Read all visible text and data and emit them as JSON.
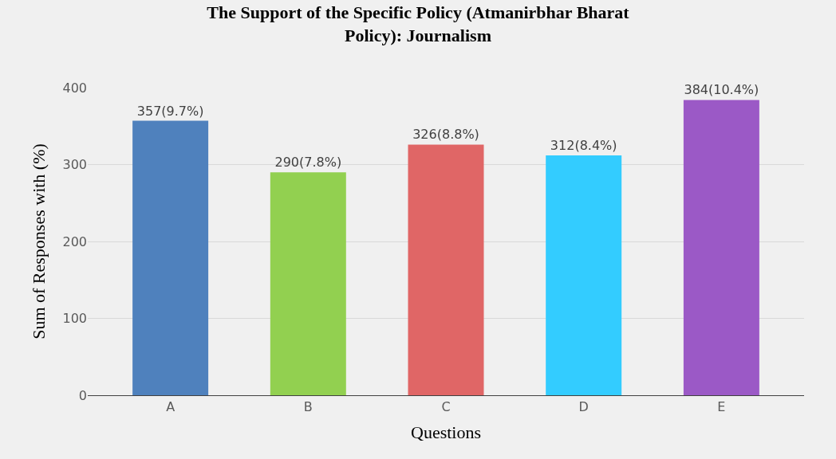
{
  "chart_data": {
    "type": "bar",
    "title": "The Support of the Specific Policy (Atmanirbhar Bharat Policy): Journalism",
    "xlabel": "Questions",
    "ylabel": "Sum of Responses with (%)",
    "categories": [
      "A",
      "B",
      "C",
      "D",
      "E"
    ],
    "values": [
      357,
      290,
      326,
      312,
      384
    ],
    "value_labels": [
      "357(9.7%)",
      "290(7.8%)",
      "326(8.8%)",
      "312(8.4%)",
      "384(10.4%)"
    ],
    "colors": [
      "#4f81bd",
      "#92d050",
      "#e06666",
      "#33ccff",
      "#9b59c6"
    ],
    "ylim": [
      0,
      400
    ],
    "yticks": [
      0,
      100,
      200,
      300,
      400
    ],
    "grid": "y"
  }
}
